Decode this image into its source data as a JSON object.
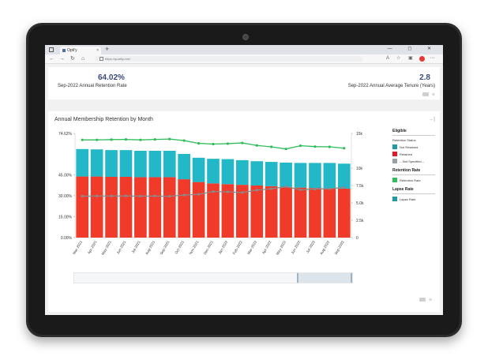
{
  "browser": {
    "tab_title": "Opti'y",
    "tab_close": "×",
    "new_tab": "+",
    "window_controls": "— ◻ ✕",
    "nav_back": "←",
    "nav_forward": "→",
    "nav_refresh": "↻",
    "nav_home": "⌂",
    "url": "https://qualify.one/",
    "menu": "···"
  },
  "kpi": {
    "retention_value": "64.02%",
    "retention_label": "Sep-2022 Annual Retention Rate",
    "tenure_value": "2.8",
    "tenure_label": "Sep-2022 Annual Average Tenure (Years)"
  },
  "chart_title": "Annual Membership Retention by Month",
  "legend": {
    "eligible_heading": "Eligible",
    "eligible_sub": "Retention Status",
    "not_retained": "Not Retained",
    "retained": "Retained",
    "not_specified": "-- Not Specified --",
    "retention_heading": "Retention Rate",
    "retention_item": "Retention Rate",
    "lapse_heading": "Lapse Rate",
    "lapse_item": "Lapse Rate"
  },
  "colors": {
    "retained": "#f03a2a",
    "not_retained": "#22b8c8",
    "not_specified": "#9aa0a6",
    "retention_line": "#2ebd59",
    "lapse_line": "#8a8a8a",
    "lapse_swatch": "#1e9aa8"
  },
  "chart_data": {
    "type": "bar",
    "categories": [
      "Mar-2021",
      "Apr-2021",
      "May-2021",
      "Jun-2021",
      "Jul-2021",
      "Aug-2021",
      "Sep-2021",
      "Oct-2021",
      "Nov-2021",
      "Dec-2021",
      "Jan-2022",
      "Feb-2022",
      "Mar-2022",
      "Apr-2022",
      "May-2022",
      "Jun-2022",
      "Jul-2022",
      "Aug-2022",
      "Sep-2022"
    ],
    "left_axis_ticks": [
      "0.00%",
      "15.00%",
      "30.00%",
      "45.00%",
      "74.62%"
    ],
    "left_axis_tick_values": [
      0,
      15,
      30,
      45,
      74.62
    ],
    "right_axis_ticks": [
      "0",
      "2.5k",
      "5.0k",
      "7.5k",
      "10k",
      "15k"
    ],
    "right_axis_tick_values": [
      0,
      2500,
      5000,
      7500,
      10000,
      15000
    ],
    "y_left_lim": [
      0,
      74.62
    ],
    "y_right_lim": [
      0,
      15000
    ],
    "series": [
      {
        "name": "Retained",
        "axis": "right",
        "values": [
          8800,
          8800,
          8750,
          8750,
          8700,
          8700,
          8700,
          8400,
          8000,
          7800,
          7700,
          7600,
          7500,
          7400,
          7300,
          7200,
          7150,
          7100,
          7050
        ]
      },
      {
        "name": "Not Retained",
        "axis": "right",
        "values": [
          3950,
          3900,
          3850,
          3850,
          3800,
          3800,
          3800,
          3650,
          3500,
          3550,
          3600,
          3550,
          3500,
          3500,
          3500,
          3550,
          3600,
          3650,
          3600
        ]
      },
      {
        "name": "Retention Rate",
        "axis": "left",
        "type": "line",
        "values": [
          70.0,
          70.0,
          70.2,
          70.3,
          70.0,
          70.3,
          70.6,
          69.5,
          67.5,
          67.0,
          67.3,
          67.8,
          66.0,
          65.0,
          63.5,
          65.8,
          65.2,
          65.0,
          64.0
        ]
      },
      {
        "name": "Lapse Rate",
        "axis": "left",
        "type": "line",
        "values": [
          29.7,
          29.8,
          29.8,
          29.9,
          29.7,
          29.8,
          29.6,
          30.5,
          31.0,
          33.0,
          32.8,
          32.3,
          34.0,
          35.0,
          36.5,
          34.3,
          34.8,
          35.0,
          36.0
        ]
      }
    ],
    "grid": false,
    "legend_position": "right"
  }
}
